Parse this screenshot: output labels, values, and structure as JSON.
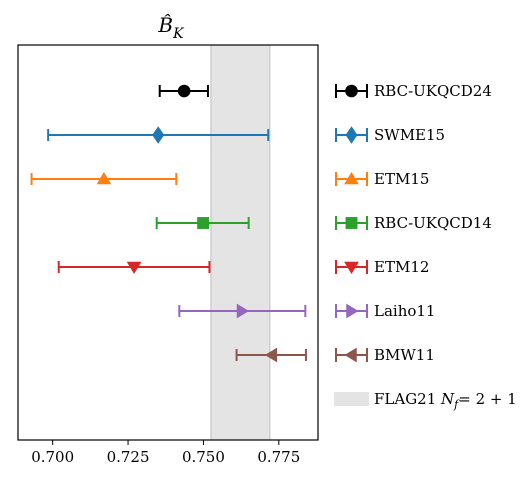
{
  "chart_data": {
    "type": "scatter",
    "title": "B̂_K",
    "title_display": {
      "base": "B̂",
      "subscript": "K"
    },
    "xlabel": "",
    "ylabel": "",
    "xlim": [
      0.6885,
      0.788
    ],
    "xticks": [
      0.7,
      0.725,
      0.75,
      0.775
    ],
    "xtick_labels": [
      "0.700",
      "0.725",
      "0.750",
      "0.775"
    ],
    "grid": false,
    "legend_position": "right",
    "band": {
      "label": "FLAG21 N_f = 2 + 1",
      "label_parts": {
        "prefix": "FLAG21 ",
        "var": "N",
        "sub": "f",
        "suffix": "= 2 + 1"
      },
      "x_low": 0.7525,
      "x_high": 0.772,
      "color": "#e4e4e4"
    },
    "series": [
      {
        "name": "RBC-UKQCD24",
        "value": 0.7436,
        "err_low": 0.7355,
        "err_high": 0.7515,
        "marker": "circle",
        "color": "#000000"
      },
      {
        "name": "SWME15",
        "value": 0.735,
        "err_low": 0.6985,
        "err_high": 0.7715,
        "marker": "diamond",
        "color": "#1f77b4"
      },
      {
        "name": "ETM15",
        "value": 0.717,
        "err_low": 0.693,
        "err_high": 0.741,
        "marker": "triangle-up",
        "color": "#ff7f0e"
      },
      {
        "name": "RBC-UKQCD14",
        "value": 0.7499,
        "err_low": 0.7345,
        "err_high": 0.765,
        "marker": "square",
        "color": "#2ca02c"
      },
      {
        "name": "ETM12",
        "value": 0.727,
        "err_low": 0.702,
        "err_high": 0.752,
        "marker": "triangle-down",
        "color": "#d62728"
      },
      {
        "name": "Laiho11",
        "value": 0.7628,
        "err_low": 0.742,
        "err_high": 0.7838,
        "marker": "triangle-right",
        "color": "#9467bd"
      },
      {
        "name": "BMW11",
        "value": 0.7727,
        "err_low": 0.761,
        "err_high": 0.784,
        "marker": "triangle-left",
        "color": "#8c564b"
      }
    ]
  }
}
